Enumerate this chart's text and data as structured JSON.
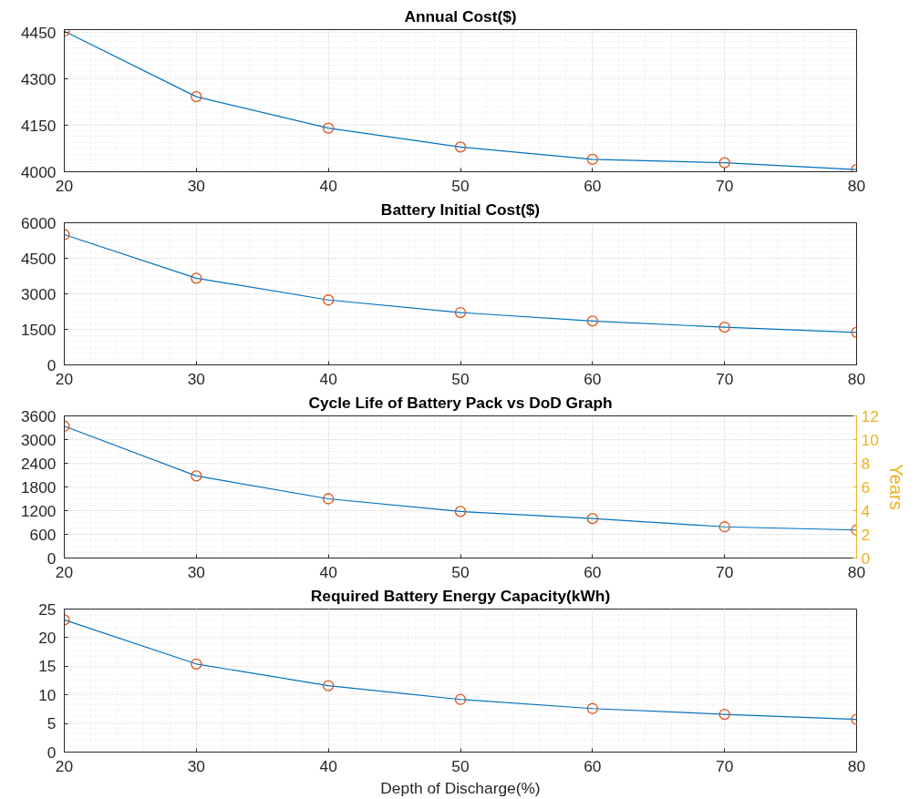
{
  "chart_data": [
    {
      "type": "line",
      "title": "Annual Cost($)",
      "x": [
        20,
        30,
        40,
        50,
        60,
        70,
        80
      ],
      "xlim": [
        20,
        80
      ],
      "xticks": [
        20,
        30,
        40,
        50,
        60,
        70,
        80
      ],
      "ylim": [
        4000,
        4460
      ],
      "yticks": [
        4000,
        4150,
        4300,
        4450
      ],
      "grid": true,
      "series": [
        {
          "color": "#0072bd",
          "values": [
            4455,
            4243,
            4141,
            4080,
            4040,
            4029,
            4007
          ]
        },
        {
          "type": "scatter",
          "marker": "circle",
          "color": "#d95319",
          "values": [
            4455,
            4243,
            4141,
            4080,
            4040,
            4029,
            4007
          ]
        }
      ]
    },
    {
      "type": "line",
      "title": "Battery Initial Cost($)",
      "x": [
        20,
        30,
        40,
        50,
        60,
        70,
        80
      ],
      "xlim": [
        20,
        80
      ],
      "xticks": [
        20,
        30,
        40,
        50,
        60,
        70,
        80
      ],
      "ylim": [
        0,
        6000
      ],
      "yticks": [
        0,
        1500,
        3000,
        4500,
        6000
      ],
      "grid": true,
      "series": [
        {
          "color": "#0072bd",
          "values": [
            5500,
            3660,
            2740,
            2210,
            1850,
            1590,
            1370
          ]
        },
        {
          "type": "scatter",
          "marker": "circle",
          "color": "#d95319",
          "values": [
            5500,
            3660,
            2740,
            2210,
            1850,
            1590,
            1370
          ]
        }
      ]
    },
    {
      "type": "line",
      "title": "Cycle Life of Battery Pack vs DoD Graph",
      "x": [
        20,
        30,
        40,
        50,
        60,
        70,
        80
      ],
      "xlim": [
        20,
        80
      ],
      "xticks": [
        20,
        30,
        40,
        50,
        60,
        70,
        80
      ],
      "ylim": [
        0,
        3600
      ],
      "yticks": [
        0,
        600,
        1200,
        1800,
        2400,
        3000,
        3600
      ],
      "y2lim": [
        0,
        12
      ],
      "y2ticks": [
        0,
        2,
        4,
        6,
        8,
        10,
        12
      ],
      "y2label": "Years",
      "grid": true,
      "series": [
        {
          "color": "#0072bd",
          "values": [
            3340,
            2080,
            1500,
            1180,
            1000,
            790,
            710
          ]
        },
        {
          "type": "scatter",
          "marker": "circle",
          "color": "#d95319",
          "values": [
            3340,
            2080,
            1500,
            1180,
            1000,
            790,
            710
          ]
        }
      ]
    },
    {
      "type": "line",
      "title": "Required Battery Energy Capacity(kWh)",
      "xlabel": "Depth of Discharge(%)",
      "x": [
        20,
        30,
        40,
        50,
        60,
        70,
        80
      ],
      "xlim": [
        20,
        80
      ],
      "xticks": [
        20,
        30,
        40,
        50,
        60,
        70,
        80
      ],
      "ylim": [
        0,
        25
      ],
      "yticks": [
        0,
        5,
        10,
        15,
        20,
        25
      ],
      "grid": true,
      "series": [
        {
          "color": "#0072bd",
          "values": [
            23.1,
            15.4,
            11.6,
            9.2,
            7.6,
            6.6,
            5.7
          ]
        },
        {
          "type": "scatter",
          "marker": "circle",
          "color": "#d95319",
          "values": [
            23.1,
            15.4,
            11.6,
            9.2,
            7.6,
            6.6,
            5.7
          ]
        }
      ]
    }
  ]
}
